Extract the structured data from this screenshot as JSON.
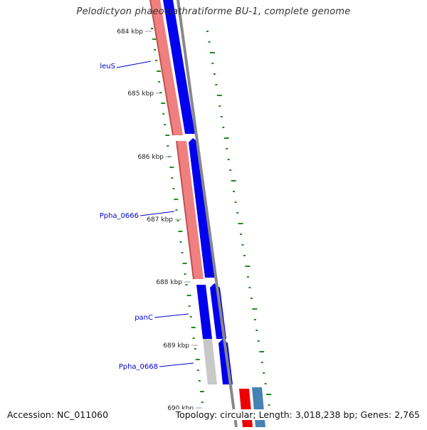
{
  "title": "Pelodictyon phaeoclathratiforme BU-1, complete genome",
  "footer": {
    "accession": "Accession: NC_011060",
    "summary": "Topology: circular; Length: 3,018,238 bp; Genes: 2,765"
  },
  "ticks": [
    "684 kbp",
    "685 kbp",
    "686 kbp",
    "687 kbp",
    "688 kbp",
    "689 kbp",
    "690 kbp"
  ],
  "genes": [
    "leuS",
    "Ppha_0666",
    "panC",
    "Ppha_0668"
  ],
  "colors": {
    "forward_cds": "#f08080",
    "reverse_cds": "#0000ee",
    "other_gene": "#c8c8c8",
    "backbone": "#888888",
    "gc_skew": "#228b22",
    "label": "#0000cc"
  }
}
